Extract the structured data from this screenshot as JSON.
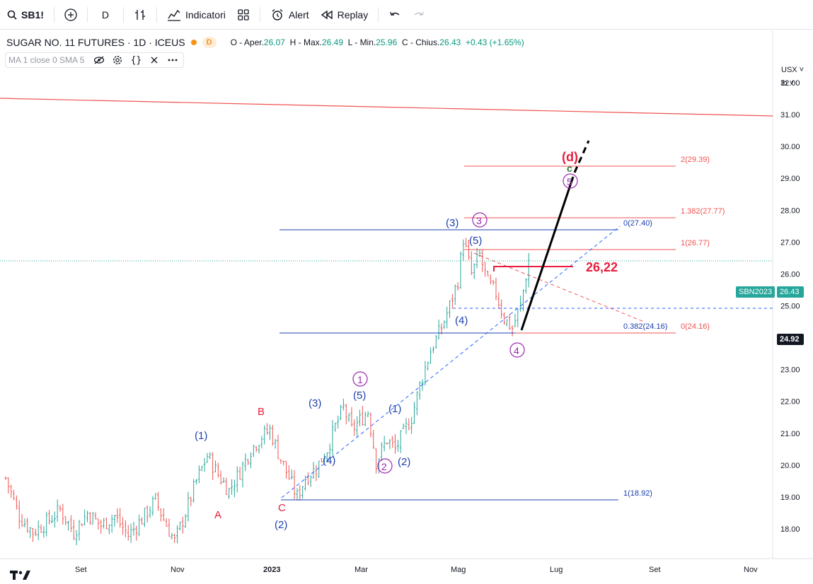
{
  "toolbar": {
    "symbol": "SB1!",
    "interval": "D",
    "indicators_label": "Indicatori",
    "alert_label": "Alert",
    "replay_label": "Replay"
  },
  "legend": {
    "title": "SUGAR NO. 11 FUTURES · 1D · ICEUS",
    "badge": "D",
    "open_label": "O - Aper.",
    "open": "26.07",
    "high_label": "H - Max.",
    "high": "26.49",
    "low_label": "L - Min.",
    "low": "25.96",
    "close_label": "C - Chius.",
    "close": "26.43",
    "change": "+0.43 (+1.65%)",
    "ma_label": "MA 1 close 0 SMA 5"
  },
  "axis": {
    "currency": "USX",
    "unit": "lb",
    "price_ticks": [
      "32.00",
      "31.00",
      "30.00",
      "29.00",
      "28.00",
      "27.00",
      "26.00",
      "25.00",
      "24.00",
      "23.00",
      "22.00",
      "21.00",
      "20.00",
      "19.00",
      "18.00"
    ],
    "time_ticks": [
      "Set",
      "Nov",
      "2023",
      "Mar",
      "Mag",
      "Lug",
      "Set",
      "Nov"
    ]
  },
  "tags": {
    "series_name": "SBN2023",
    "last_price": "26.43",
    "crosshair_price": "24.92"
  },
  "annotations": {
    "target_label": "26,22",
    "fib_labels": [
      "2(29.39)",
      "1.382(27.77)",
      "1(26.77)",
      "0(24.16)",
      "0(27.40)",
      "0.382(24.16)",
      "1(18.92)"
    ],
    "wave_labels": [
      "(d)",
      "c",
      "5",
      "3",
      "(3)",
      "(5)",
      "(4)",
      "4",
      "1",
      "(5)",
      "(3)",
      "(1)",
      "(4)",
      "2",
      "(2)",
      "(1)",
      "B",
      "A",
      "C",
      "(2)"
    ]
  },
  "colors": {
    "up": "#26a69a",
    "down": "#ef5350",
    "blue": "#2962ff",
    "purple": "#9c27b0",
    "red": "#e91e3c"
  },
  "chart_data": {
    "type": "candlestick",
    "title": "SUGAR NO. 11 FUTURES · 1D · ICEUS",
    "ylim": [
      17.2,
      33.0
    ],
    "x_labels": [
      "Set",
      "Nov",
      "2023",
      "Mar",
      "Mag",
      "Lug",
      "Set",
      "Nov"
    ],
    "price_path": [
      [
        0,
        19.6
      ],
      [
        5,
        18.4
      ],
      [
        10,
        17.9
      ],
      [
        15,
        18.2
      ],
      [
        20,
        18.6
      ],
      [
        25,
        17.9
      ],
      [
        30,
        18.5
      ],
      [
        35,
        18.1
      ],
      [
        40,
        18.4
      ],
      [
        45,
        17.8
      ],
      [
        50,
        18.3
      ],
      [
        55,
        18.9
      ],
      [
        58,
        18.3
      ],
      [
        62,
        17.6
      ],
      [
        66,
        18.5
      ],
      [
        70,
        19.5
      ],
      [
        74,
        20.3
      ],
      [
        78,
        19.7
      ],
      [
        82,
        19.2
      ],
      [
        86,
        19.8
      ],
      [
        90,
        20.5
      ],
      [
        94,
        20.9
      ],
      [
        97,
        21.1
      ],
      [
        100,
        20.4
      ],
      [
        104,
        19.6
      ],
      [
        107,
        19.0
      ],
      [
        110,
        19.6
      ],
      [
        114,
        19.9
      ],
      [
        118,
        20.5
      ],
      [
        121,
        21.2
      ],
      [
        124,
        21.8
      ],
      [
        127,
        21.1
      ],
      [
        130,
        21.4
      ],
      [
        133,
        21.7
      ],
      [
        136,
        20.1
      ],
      [
        140,
        20.8
      ],
      [
        143,
        20.5
      ],
      [
        146,
        21.0
      ],
      [
        149,
        21.5
      ],
      [
        152,
        22.5
      ],
      [
        156,
        23.6
      ],
      [
        160,
        24.3
      ],
      [
        163,
        25.0
      ],
      [
        166,
        25.8
      ],
      [
        168,
        27.1
      ],
      [
        171,
        26.0
      ],
      [
        174,
        26.6
      ],
      [
        177,
        25.7
      ],
      [
        180,
        25.4
      ],
      [
        183,
        24.6
      ],
      [
        186,
        24.3
      ],
      [
        189,
        25.0
      ],
      [
        192,
        26.43
      ]
    ]
  }
}
